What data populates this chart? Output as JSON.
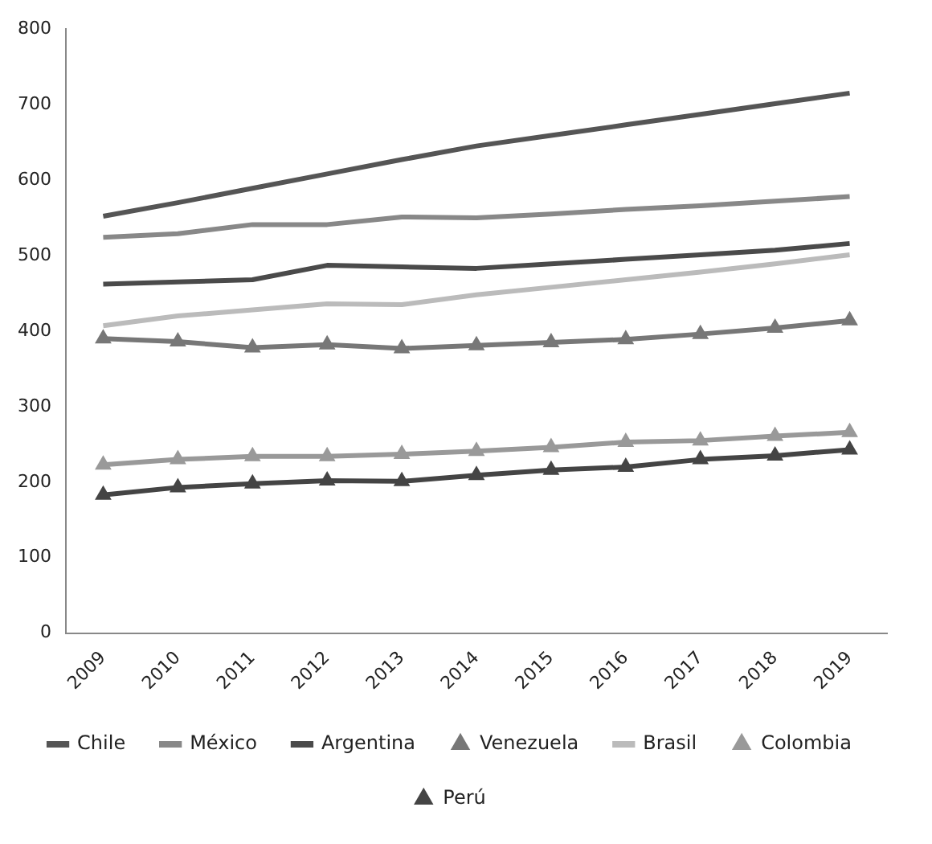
{
  "chart_data": {
    "type": "line",
    "categories": [
      "2009",
      "2010",
      "2011",
      "2012",
      "2013",
      "2014",
      "2015",
      "2016",
      "2017",
      "2018",
      "2019"
    ],
    "ylim": [
      0,
      800
    ],
    "yticks": [
      0,
      100,
      200,
      300,
      400,
      500,
      600,
      700,
      800
    ],
    "grid": false,
    "legend": "bottom",
    "series": [
      {
        "name": "Chile",
        "color": "#555555",
        "marker": "none",
        "values": [
          552,
          570,
          589,
          608,
          627,
          645,
          659,
          673,
          687,
          701,
          715
        ]
      },
      {
        "name": "México",
        "color": "#888888",
        "marker": "none",
        "values": [
          524,
          529,
          541,
          541,
          551,
          550,
          555,
          561,
          566,
          572,
          578
        ]
      },
      {
        "name": "Argentina",
        "color": "#4a4a4a",
        "marker": "none",
        "values": [
          462,
          465,
          468,
          487,
          485,
          483,
          489,
          495,
          501,
          507,
          516
        ]
      },
      {
        "name": "Venezuela",
        "color": "#777777",
        "marker": "triangle",
        "values": [
          390,
          386,
          378,
          382,
          377,
          381,
          385,
          389,
          396,
          404,
          414
        ]
      },
      {
        "name": "Brasil",
        "color": "#bbbbbb",
        "marker": "none",
        "values": [
          407,
          420,
          428,
          436,
          435,
          448,
          458,
          468,
          478,
          489,
          501
        ]
      },
      {
        "name": "Colombia",
        "color": "#999999",
        "marker": "triangle",
        "values": [
          223,
          230,
          234,
          234,
          237,
          241,
          246,
          253,
          255,
          261,
          266
        ]
      },
      {
        "name": "Perú",
        "color": "#444444",
        "marker": "triangle",
        "values": [
          183,
          193,
          198,
          202,
          201,
          209,
          216,
          220,
          230,
          235,
          243
        ]
      }
    ]
  }
}
